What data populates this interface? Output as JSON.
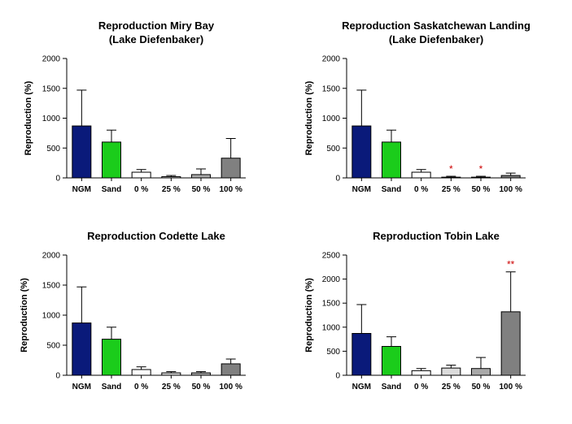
{
  "colors": {
    "ngm": "#0a1a7a",
    "sand": "#1bcc1b",
    "zero": "#ffffff",
    "p25": "#dcdcdc",
    "p50": "#aaaaaa",
    "p100": "#808080",
    "significance": "#cc0000"
  },
  "chart_data": [
    {
      "type": "bar",
      "title": [
        "Reproduction Miry Bay",
        "(Lake Diefenbaker)"
      ],
      "ylabel": "Reproduction (%)",
      "xlabel": "",
      "ylim": [
        0,
        2000
      ],
      "yticks": [
        0,
        500,
        1000,
        1500,
        2000
      ],
      "categories": [
        "NGM",
        "Sand",
        "0 %",
        "25 %",
        "50 %",
        "100 %"
      ],
      "values": [
        870,
        600,
        95,
        20,
        55,
        330
      ],
      "errors": [
        600,
        200,
        45,
        20,
        95,
        330
      ],
      "significance": [
        "",
        "",
        "",
        "",
        "",
        ""
      ],
      "grid": false,
      "legend": "none"
    },
    {
      "type": "bar",
      "title": [
        "Reproduction Saskatchewan Landing",
        "(Lake Diefenbaker)"
      ],
      "ylabel": "Reproduction (%)",
      "xlabel": "",
      "ylim": [
        0,
        2000
      ],
      "yticks": [
        0,
        500,
        1000,
        1500,
        2000
      ],
      "categories": [
        "NGM",
        "Sand",
        "0 %",
        "25 %",
        "50 %",
        "100 %"
      ],
      "values": [
        870,
        600,
        95,
        12,
        12,
        40
      ],
      "errors": [
        600,
        200,
        45,
        15,
        15,
        40
      ],
      "significance": [
        "",
        "",
        "",
        "*",
        "*",
        ""
      ],
      "grid": false,
      "legend": "none"
    },
    {
      "type": "bar",
      "title": [
        "Reproduction Codette Lake"
      ],
      "ylabel": "Reproduction (%)",
      "xlabel": "",
      "ylim": [
        0,
        2000
      ],
      "yticks": [
        0,
        500,
        1000,
        1500,
        2000
      ],
      "categories": [
        "NGM",
        "Sand",
        "0 %",
        "25 %",
        "50 %",
        "100 %"
      ],
      "values": [
        870,
        600,
        95,
        40,
        40,
        190
      ],
      "errors": [
        600,
        200,
        45,
        20,
        20,
        80
      ],
      "significance": [
        "",
        "",
        "",
        "",
        "",
        ""
      ],
      "grid": false,
      "legend": "none"
    },
    {
      "type": "bar",
      "title": [
        "Reproduction Tobin Lake"
      ],
      "ylabel": "Reproduction (%)",
      "xlabel": "",
      "ylim": [
        0,
        2500
      ],
      "yticks": [
        0,
        500,
        1000,
        1500,
        2000,
        2500
      ],
      "categories": [
        "NGM",
        "Sand",
        "0 %",
        "25 %",
        "50 %",
        "100 %"
      ],
      "values": [
        870,
        600,
        95,
        150,
        140,
        1320
      ],
      "errors": [
        600,
        200,
        45,
        60,
        230,
        830
      ],
      "significance": [
        "",
        "",
        "",
        "",
        "",
        "**"
      ],
      "grid": false,
      "legend": "none"
    }
  ]
}
